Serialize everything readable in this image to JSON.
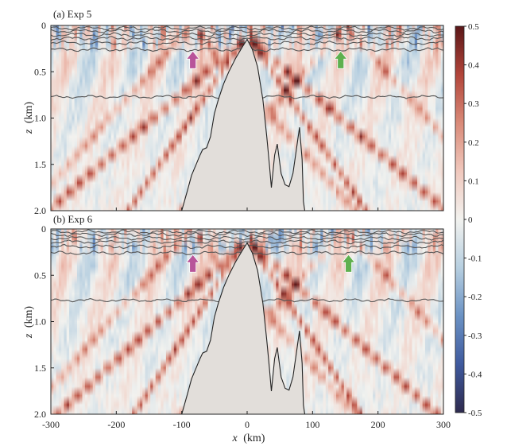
{
  "chart_data": {
    "type": "heatmap",
    "panels": [
      {
        "title": "(a) Exp 5",
        "xlim": [
          -300,
          300
        ],
        "ylim": [
          0,
          2.0
        ],
        "ylabel_var": "z",
        "ylabel_unit": "(km)",
        "y_ticks": [
          "0",
          "0.5",
          "1.0",
          "1.5",
          "2.0"
        ],
        "arrows": [
          {
            "x": -83,
            "z": 0.38,
            "color": "#b8549a"
          },
          {
            "x": 143,
            "z": 0.38,
            "color": "#5fb04f"
          }
        ]
      },
      {
        "title": "(b) Exp 6",
        "xlim": [
          -300,
          300
        ],
        "ylim": [
          0,
          2.0
        ],
        "ylabel_var": "z",
        "ylabel_unit": "(km)",
        "y_ticks": [
          "0",
          "0.5",
          "1.0",
          "1.5",
          "2.0"
        ],
        "arrows": [
          {
            "x": -83,
            "z": 0.38,
            "color": "#b8549a"
          },
          {
            "x": 155,
            "z": 0.38,
            "color": "#5fb04f"
          }
        ]
      }
    ],
    "x_ticks": [
      "-300",
      "-200",
      "-100",
      "0",
      "100",
      "200",
      "300"
    ],
    "xlabel_var": "x",
    "xlabel_unit": "(km)",
    "colorbar": {
      "range": [
        -0.5,
        0.5
      ],
      "ticks": [
        "0.5",
        "0.4",
        "0.3",
        "0.2",
        "0.1",
        "0",
        "-0.1",
        "-0.2",
        "-0.3",
        "-0.4",
        "-0.5"
      ],
      "colors": [
        "#2e2a4e",
        "#3f5a9e",
        "#6b92c4",
        "#b7cfe0",
        "#f2f2ef",
        "#f0c8bd",
        "#d98a78",
        "#b2453a",
        "#5a1718"
      ]
    },
    "isopycnal_depths_km": [
      0.03,
      0.06,
      0.1,
      0.14,
      0.19,
      0.26,
      0.77
    ],
    "topography": [
      [
        -100,
        2.0
      ],
      [
        -92,
        1.8
      ],
      [
        -85,
        1.62
      ],
      [
        -78,
        1.5
      ],
      [
        -72,
        1.4
      ],
      [
        -68,
        1.34
      ],
      [
        -62,
        1.32
      ],
      [
        -56,
        1.2
      ],
      [
        -50,
        0.95
      ],
      [
        -44,
        0.8
      ],
      [
        -36,
        0.63
      ],
      [
        -28,
        0.5
      ],
      [
        -18,
        0.36
      ],
      [
        -8,
        0.24
      ],
      [
        0,
        0.15
      ],
      [
        8,
        0.26
      ],
      [
        16,
        0.45
      ],
      [
        24,
        0.8
      ],
      [
        30,
        1.2
      ],
      [
        34,
        1.5
      ],
      [
        37,
        1.75
      ],
      [
        42,
        1.4
      ],
      [
        46,
        1.28
      ],
      [
        52,
        1.6
      ],
      [
        58,
        1.72
      ],
      [
        64,
        1.74
      ],
      [
        70,
        1.6
      ],
      [
        76,
        1.3
      ],
      [
        80,
        1.1
      ],
      [
        84,
        1.45
      ],
      [
        86,
        1.9
      ],
      [
        88,
        2.0
      ]
    ]
  }
}
